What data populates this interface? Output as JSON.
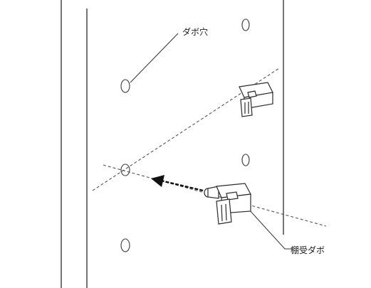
{
  "labels": {
    "dabo_hole": "ダボ穴",
    "shelf_support_dowel": "棚受ダボ"
  }
}
